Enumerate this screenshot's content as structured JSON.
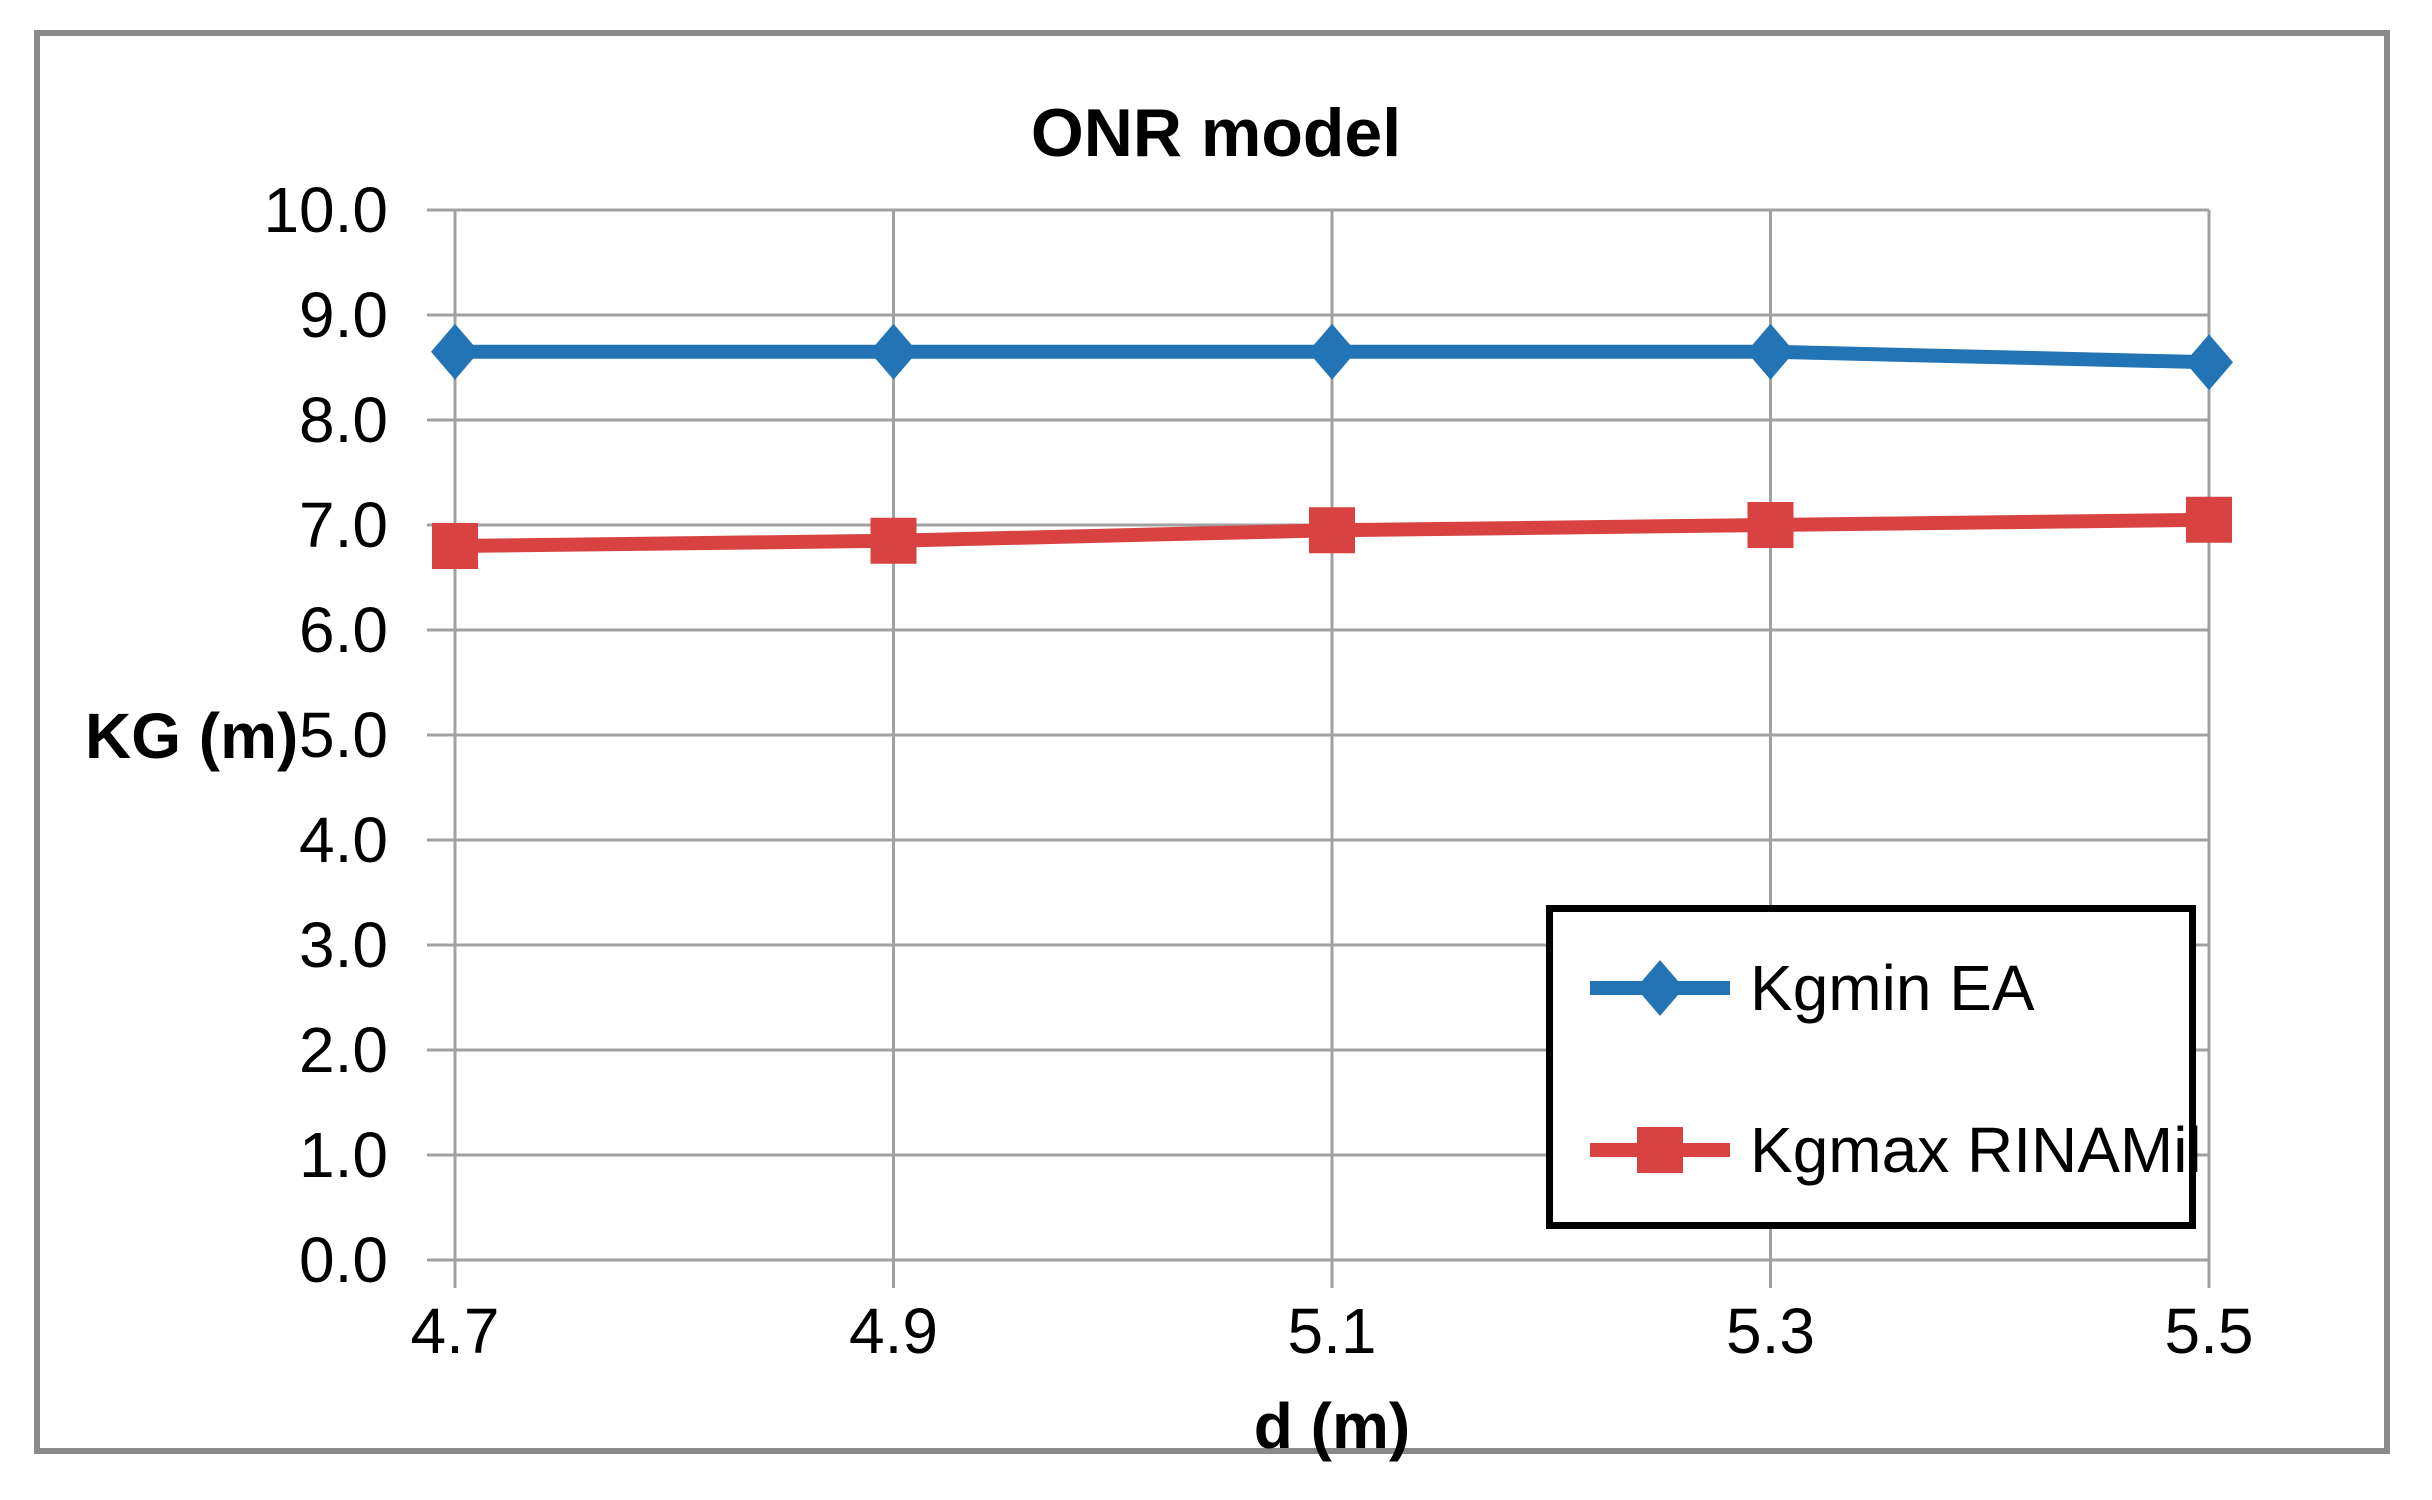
{
  "chart_data": {
    "type": "line",
    "title": "ONR model",
    "xlabel": "d (m)",
    "ylabel": "KG (m)",
    "xlim": [
      4.7,
      5.5
    ],
    "ylim": [
      0,
      10
    ],
    "x": [
      4.7,
      4.9,
      5.1,
      5.3,
      5.5
    ],
    "x_tick_labels": [
      "4.7",
      "4.9",
      "5.1",
      "5.3",
      "5.5"
    ],
    "y_ticks": [
      0,
      1,
      2,
      3,
      4,
      5,
      6,
      7,
      8,
      9,
      10
    ],
    "y_tick_labels": [
      "0.0",
      "1.0",
      "2.0",
      "3.0",
      "4.0",
      "5.0",
      "6.0",
      "7.0",
      "8.0",
      "9.0",
      "10.0"
    ],
    "grid": true,
    "legend": {
      "position": "inside-bottom-right",
      "entries": [
        "Kgmin EA",
        "Kgmax RINAMil"
      ]
    },
    "series": [
      {
        "name": "Kgmin EA",
        "marker": "diamond",
        "color": "#2274B5",
        "values": [
          8.65,
          8.65,
          8.65,
          8.65,
          8.55
        ]
      },
      {
        "name": "Kgmax RINAMil",
        "marker": "square",
        "color": "#D84342",
        "values": [
          6.8,
          6.85,
          6.95,
          7.0,
          7.05
        ]
      }
    ],
    "colors": {
      "gridline": "#A1A1A1",
      "text": "#000000",
      "figure_border": "#8A8A8A",
      "legend_border": "#000000",
      "background": "#FFFFFF"
    }
  }
}
